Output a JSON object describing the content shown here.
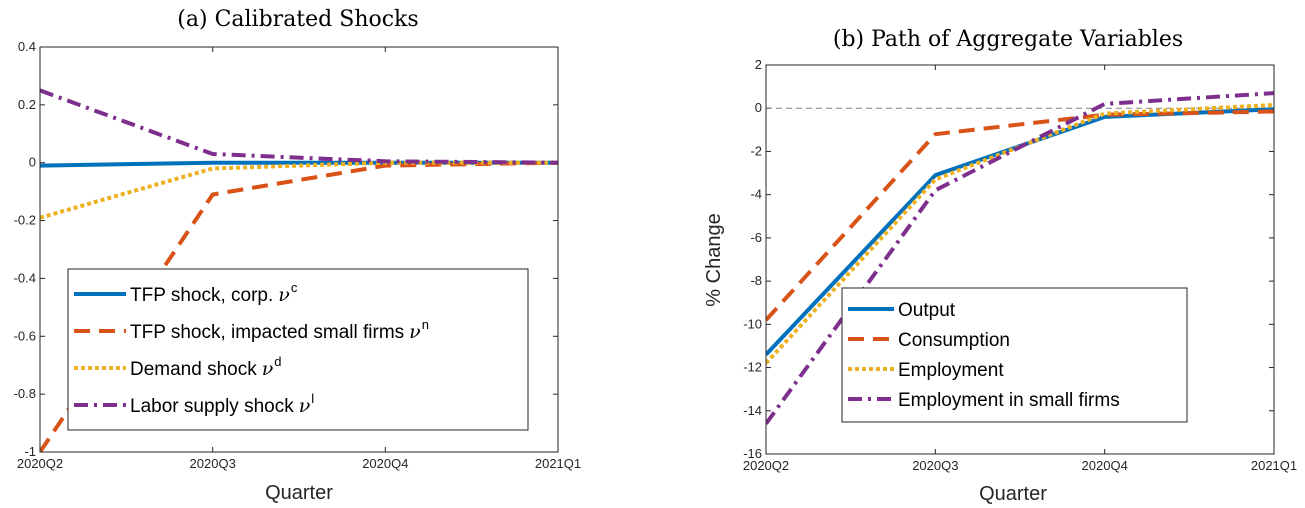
{
  "chart_data": [
    {
      "type": "line",
      "title": "(a) Calibrated Shocks",
      "xlabel": "Quarter",
      "ylabel": "",
      "categories": [
        "2020Q2",
        "2020Q3",
        "2020Q4",
        "2021Q1"
      ],
      "ylim": [
        -1,
        0.4
      ],
      "yticks": [
        "0.4",
        "0.2",
        "0",
        "-0.2",
        "-0.4",
        "-0.6",
        "-0.8",
        "-1"
      ],
      "legend_position": "bottom-left",
      "series": [
        {
          "name": "TFP shock, corp.",
          "symbol": "ν",
          "sup": "c",
          "values": [
            -0.01,
            0.0,
            0.0,
            0.0
          ],
          "color": "#0072BD",
          "style": "solid"
        },
        {
          "name": "TFP shock, impacted small firms",
          "symbol": "ν",
          "sup": "n",
          "values": [
            -1.0,
            -0.11,
            -0.01,
            0.0
          ],
          "color": "#D95319",
          "style": "dashed"
        },
        {
          "name": "Demand shock",
          "symbol": "ν",
          "sup": "d",
          "values": [
            -0.19,
            -0.02,
            0.0,
            0.0
          ],
          "color": "#EDB120",
          "style": "dotted"
        },
        {
          "name": "Labor supply shock",
          "symbol": "ν",
          "sup": "l",
          "values": [
            0.25,
            0.03,
            0.005,
            0.0
          ],
          "color": "#7E2F8E",
          "style": "dashdot"
        }
      ]
    },
    {
      "type": "line",
      "title": "(b) Path of Aggregate Variables",
      "xlabel": "Quarter",
      "ylabel": "% Change",
      "categories": [
        "2020Q2",
        "2020Q3",
        "2020Q4",
        "2021Q1"
      ],
      "ylim": [
        -16,
        2
      ],
      "yticks": [
        "2",
        "0",
        "-2",
        "-4",
        "-6",
        "-8",
        "-10",
        "-12",
        "-14",
        "-16"
      ],
      "reference_line": 0,
      "legend_position": "bottom-center",
      "series": [
        {
          "name": "Output",
          "values": [
            -11.4,
            -3.1,
            -0.4,
            -0.05
          ],
          "color": "#0072BD",
          "style": "solid"
        },
        {
          "name": "Consumption",
          "values": [
            -9.8,
            -1.2,
            -0.3,
            -0.15
          ],
          "color": "#D95319",
          "style": "dashed"
        },
        {
          "name": "Employment",
          "values": [
            -11.8,
            -3.3,
            -0.25,
            0.15
          ],
          "color": "#EDB120",
          "style": "dotted"
        },
        {
          "name": "Employment in small firms",
          "values": [
            -14.6,
            -3.8,
            0.2,
            0.7
          ],
          "color": "#7E2F8E",
          "style": "dashdot"
        }
      ]
    }
  ]
}
